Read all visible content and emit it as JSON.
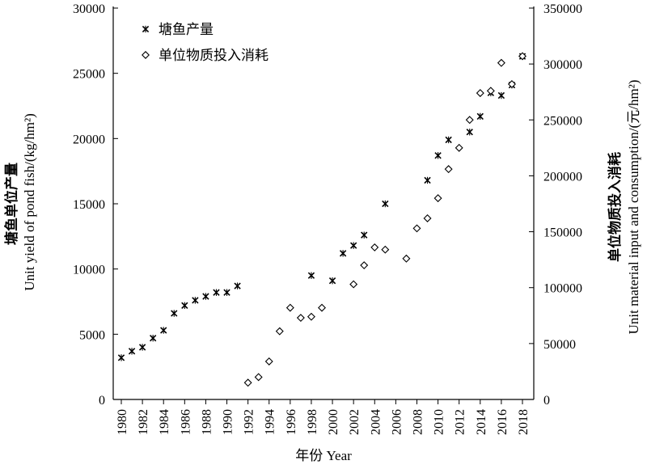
{
  "chart_data": {
    "type": "scatter",
    "xlabel": "年份 Year",
    "ylabel_left_cn": "塘鱼单位产量",
    "ylabel_left_en": "Unit yield of pond fish/(kg/hm²)",
    "ylabel_right_cn": "单位物质投入消耗",
    "ylabel_right_en": "Unit material input and consumption/(元/hm²)",
    "xlim": [
      1980,
      2018
    ],
    "ylim_left": [
      0,
      30000
    ],
    "ylim_right": [
      0,
      350000
    ],
    "x_ticks": [
      1980,
      1982,
      1984,
      1986,
      1988,
      1990,
      1992,
      1994,
      1996,
      1998,
      2000,
      2002,
      2004,
      2006,
      2008,
      2010,
      2012,
      2014,
      2016,
      2018
    ],
    "y_ticks_left": [
      0,
      5000,
      10000,
      15000,
      20000,
      25000,
      30000
    ],
    "y_ticks_right": [
      0,
      50000,
      100000,
      150000,
      200000,
      250000,
      300000,
      350000
    ],
    "legend_position": "top-left",
    "series": [
      {
        "name": "塘鱼产量",
        "axis": "left",
        "marker": "x",
        "points": [
          [
            1980,
            3200
          ],
          [
            1981,
            3700
          ],
          [
            1982,
            4000
          ],
          [
            1983,
            4700
          ],
          [
            1984,
            5300
          ],
          [
            1985,
            6600
          ],
          [
            1986,
            7200
          ],
          [
            1987,
            7600
          ],
          [
            1988,
            7900
          ],
          [
            1989,
            8200
          ],
          [
            1990,
            8200
          ],
          [
            1991,
            8700
          ],
          [
            1998,
            9500
          ],
          [
            2000,
            9100
          ],
          [
            2001,
            11200
          ],
          [
            2002,
            11800
          ],
          [
            2003,
            12600
          ],
          [
            2005,
            15000
          ],
          [
            2009,
            16800
          ],
          [
            2010,
            18700
          ],
          [
            2011,
            19900
          ],
          [
            2013,
            20500
          ],
          [
            2014,
            21700
          ],
          [
            2015,
            23500
          ],
          [
            2016,
            23300
          ],
          [
            2017,
            24100
          ],
          [
            2018,
            26300
          ]
        ]
      },
      {
        "name": "单位物质投入消耗",
        "axis": "right",
        "marker": "diamond",
        "points": [
          [
            1992,
            15000
          ],
          [
            1993,
            20000
          ],
          [
            1994,
            34000
          ],
          [
            1995,
            61000
          ],
          [
            1996,
            82000
          ],
          [
            1997,
            73000
          ],
          [
            1998,
            74000
          ],
          [
            1999,
            82000
          ],
          [
            2002,
            103000
          ],
          [
            2003,
            120000
          ],
          [
            2004,
            136000
          ],
          [
            2005,
            134000
          ],
          [
            2007,
            126000
          ],
          [
            2008,
            153000
          ],
          [
            2009,
            162000
          ],
          [
            2010,
            180000
          ],
          [
            2011,
            206000
          ],
          [
            2012,
            225000
          ],
          [
            2013,
            250000
          ],
          [
            2014,
            274000
          ],
          [
            2015,
            276000
          ],
          [
            2016,
            301000
          ],
          [
            2017,
            282000
          ],
          [
            2018,
            307000
          ]
        ]
      }
    ]
  }
}
